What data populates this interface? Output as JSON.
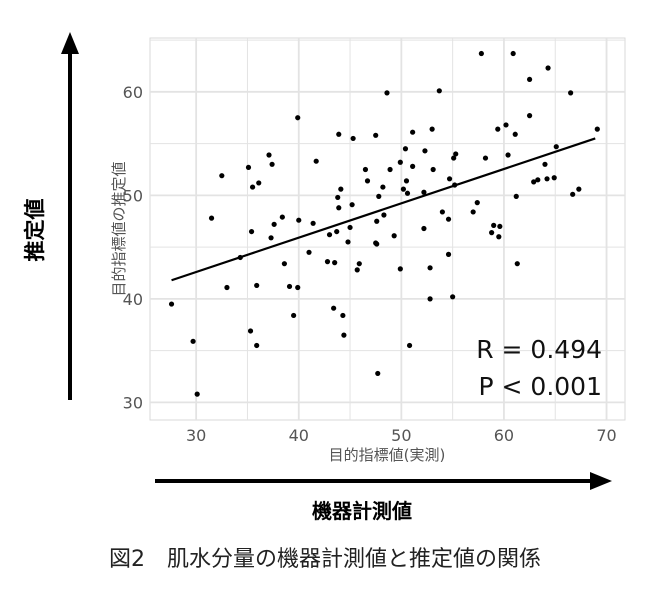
{
  "chart_data": {
    "type": "scatter",
    "title": "",
    "xlabel": "目的指標値(実測)",
    "ylabel": "目的指標値の推定値",
    "xlim": [
      25.5,
      71.8
    ],
    "ylim": [
      28.3,
      65.2
    ],
    "x_ticks": [
      30,
      40,
      50,
      60,
      70
    ],
    "y_ticks": [
      30,
      40,
      50,
      60
    ],
    "grid": true,
    "legend": "none",
    "point_color": "#000000",
    "grid_color": "#e3e3e3",
    "points": [
      [
        48.6,
        59.9
      ],
      [
        39.9,
        57.5
      ],
      [
        43.9,
        55.9
      ],
      [
        45.3,
        55.5
      ],
      [
        47.5,
        55.8
      ],
      [
        37.1,
        53.9
      ],
      [
        37.4,
        53.0
      ],
      [
        35.1,
        52.7
      ],
      [
        32.5,
        51.9
      ],
      [
        41.7,
        53.3
      ],
      [
        35.5,
        50.8
      ],
      [
        36.1,
        51.2
      ],
      [
        46.5,
        52.5
      ],
      [
        46.7,
        51.4
      ],
      [
        44.1,
        50.6
      ],
      [
        43.8,
        49.8
      ],
      [
        43.9,
        48.8
      ],
      [
        45.2,
        49.1
      ],
      [
        48.2,
        50.8
      ],
      [
        47.8,
        49.9
      ],
      [
        48.3,
        48.1
      ],
      [
        47.6,
        47.5
      ],
      [
        31.5,
        47.8
      ],
      [
        38.4,
        47.9
      ],
      [
        37.6,
        47.2
      ],
      [
        40.0,
        47.6
      ],
      [
        41.4,
        47.3
      ],
      [
        45.0,
        46.9
      ],
      [
        48.9,
        52.5
      ],
      [
        57.8,
        63.7
      ],
      [
        60.9,
        63.7
      ],
      [
        64.3,
        62.3
      ],
      [
        62.5,
        61.2
      ],
      [
        53.7,
        60.1
      ],
      [
        66.5,
        59.9
      ],
      [
        62.5,
        57.7
      ],
      [
        51.1,
        56.1
      ],
      [
        53.0,
        56.4
      ],
      [
        59.4,
        56.4
      ],
      [
        60.2,
        56.8
      ],
      [
        61.1,
        55.9
      ],
      [
        69.1,
        56.4
      ],
      [
        50.4,
        54.5
      ],
      [
        52.3,
        54.3
      ],
      [
        55.3,
        54.0
      ],
      [
        55.1,
        53.6
      ],
      [
        58.2,
        53.6
      ],
      [
        60.4,
        53.9
      ],
      [
        65.1,
        54.7
      ],
      [
        49.9,
        53.2
      ],
      [
        51.1,
        52.8
      ],
      [
        53.1,
        52.5
      ],
      [
        64.0,
        53.0
      ],
      [
        50.5,
        51.4
      ],
      [
        50.2,
        50.6
      ],
      [
        50.6,
        50.2
      ],
      [
        52.2,
        50.3
      ],
      [
        54.7,
        51.6
      ],
      [
        55.2,
        51.0
      ],
      [
        62.9,
        51.3
      ],
      [
        63.3,
        51.5
      ],
      [
        64.2,
        51.6
      ],
      [
        64.9,
        51.7
      ],
      [
        61.2,
        49.9
      ],
      [
        66.7,
        50.1
      ],
      [
        67.3,
        50.6
      ],
      [
        57.4,
        49.3
      ],
      [
        54.0,
        48.4
      ],
      [
        57.0,
        48.4
      ],
      [
        54.6,
        47.7
      ],
      [
        52.2,
        46.8
      ],
      [
        59.0,
        47.1
      ],
      [
        59.6,
        47.0
      ],
      [
        35.4,
        46.5
      ],
      [
        37.3,
        45.9
      ],
      [
        43.0,
        46.2
      ],
      [
        43.7,
        46.5
      ],
      [
        44.8,
        45.5
      ],
      [
        47.5,
        45.4
      ],
      [
        47.6,
        45.3
      ],
      [
        34.3,
        44.0
      ],
      [
        41.0,
        44.5
      ],
      [
        38.6,
        43.4
      ],
      [
        42.8,
        43.6
      ],
      [
        43.5,
        43.5
      ],
      [
        45.9,
        43.4
      ],
      [
        45.7,
        42.8
      ],
      [
        33.0,
        41.1
      ],
      [
        35.9,
        41.3
      ],
      [
        39.1,
        41.2
      ],
      [
        39.9,
        41.1
      ],
      [
        27.6,
        39.5
      ],
      [
        43.4,
        39.1
      ],
      [
        44.3,
        38.4
      ],
      [
        39.5,
        38.4
      ],
      [
        35.3,
        36.9
      ],
      [
        44.4,
        36.5
      ],
      [
        29.7,
        35.9
      ],
      [
        35.9,
        35.5
      ],
      [
        47.7,
        32.8
      ],
      [
        30.1,
        30.8
      ],
      [
        49.3,
        46.1
      ],
      [
        58.8,
        46.4
      ],
      [
        59.5,
        46.0
      ],
      [
        54.6,
        44.3
      ],
      [
        49.9,
        42.9
      ],
      [
        52.8,
        43.0
      ],
      [
        61.3,
        43.4
      ],
      [
        52.8,
        40.0
      ],
      [
        55.0,
        40.2
      ],
      [
        50.8,
        35.5
      ]
    ],
    "fit_line": {
      "x": [
        27.6,
        68.9
      ],
      "y": [
        41.8,
        55.5
      ]
    },
    "annotations": {
      "r": "R = 0.494",
      "p": "P < 0.001"
    }
  },
  "outer": {
    "y_arrow_label": "推定値",
    "x_arrow_label": "機器計測値",
    "caption": "図2　肌水分量の機器計測値と推定値の関係"
  }
}
